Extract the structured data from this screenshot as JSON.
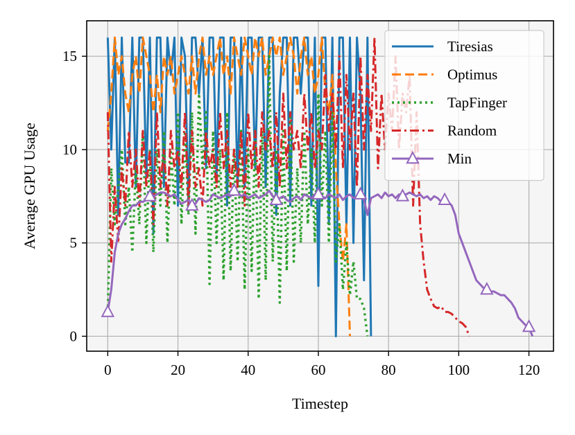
{
  "chart_data": {
    "type": "line",
    "title": "",
    "xlabel": "Timestep",
    "ylabel": "Average GPU Usage",
    "xlim": [
      -6,
      127
    ],
    "ylim": [
      -0.8,
      16.9
    ],
    "xticks": [
      0,
      20,
      40,
      60,
      80,
      100,
      120
    ],
    "yticks": [
      0,
      5,
      10,
      15
    ],
    "grid": true,
    "legend_position": "top-right",
    "series": [
      {
        "name": "Tiresias",
        "color": "#1f77b4",
        "dash": "solid",
        "marker": "none",
        "x": [
          0,
          1,
          2,
          3,
          4,
          5,
          6,
          7,
          8,
          9,
          10,
          11,
          12,
          13,
          14,
          15,
          16,
          17,
          18,
          19,
          20,
          21,
          22,
          23,
          24,
          25,
          26,
          27,
          28,
          29,
          30,
          31,
          32,
          33,
          34,
          35,
          36,
          37,
          38,
          39,
          40,
          41,
          42,
          43,
          44,
          45,
          46,
          47,
          48,
          49,
          50,
          51,
          52,
          53,
          54,
          55,
          56,
          57,
          58,
          59,
          60,
          61,
          62,
          63,
          64,
          65,
          66,
          67,
          68,
          69,
          70,
          71,
          72,
          73,
          74,
          75
        ],
        "y": [
          16,
          10,
          16,
          6.5,
          16,
          9.3,
          9.3,
          16,
          8,
          16,
          16,
          8.5,
          16,
          5.5,
          16,
          16,
          8,
          16,
          14,
          16,
          7,
          16,
          15,
          7,
          16,
          16,
          13,
          16,
          9,
          16,
          16,
          8.5,
          16,
          16,
          7,
          16,
          16,
          8,
          16,
          8,
          16,
          16,
          9,
          16,
          16,
          8,
          16,
          16,
          6.5,
          13,
          16,
          16,
          7,
          16,
          16,
          13,
          16,
          16,
          7,
          16,
          2.7,
          16,
          16,
          6,
          16,
          0,
          16,
          16,
          6,
          16,
          5,
          16,
          13,
          3,
          16,
          0
        ]
      },
      {
        "name": "Optimus",
        "color": "#ff7f0e",
        "dash": "dashed",
        "marker": "none",
        "x": [
          0,
          1,
          2,
          3,
          4,
          5,
          6,
          7,
          8,
          9,
          10,
          11,
          12,
          13,
          14,
          15,
          16,
          17,
          18,
          19,
          20,
          21,
          22,
          23,
          24,
          25,
          26,
          27,
          28,
          29,
          30,
          31,
          32,
          33,
          34,
          35,
          36,
          37,
          38,
          39,
          40,
          41,
          42,
          43,
          44,
          45,
          46,
          47,
          48,
          49,
          50,
          51,
          52,
          53,
          54,
          55,
          56,
          57,
          58,
          59,
          60,
          61,
          62,
          63,
          64,
          65,
          66,
          67,
          68,
          69
        ],
        "y": [
          11,
          13,
          16,
          14,
          15,
          13,
          12,
          14,
          15,
          13,
          16,
          15,
          14,
          12,
          14,
          12,
          15,
          14,
          15,
          13,
          14,
          15,
          14,
          13,
          15,
          13,
          15,
          16,
          14,
          15,
          14,
          15,
          16,
          14,
          15,
          13,
          16,
          15,
          14,
          16,
          15,
          14,
          16,
          15,
          16,
          14,
          15,
          16,
          15,
          16,
          14,
          15,
          16,
          15,
          13,
          15,
          16,
          14,
          15,
          13,
          14,
          16,
          13,
          12,
          14,
          9,
          6,
          4,
          6,
          0
        ]
      },
      {
        "name": "TapFinger",
        "color": "#2ca02c",
        "dash": "dotted",
        "marker": "none",
        "x": [
          0,
          1,
          2,
          3,
          4,
          5,
          6,
          7,
          8,
          9,
          10,
          11,
          12,
          13,
          14,
          15,
          16,
          17,
          18,
          19,
          20,
          21,
          22,
          23,
          24,
          25,
          26,
          27,
          28,
          29,
          30,
          31,
          32,
          33,
          34,
          35,
          36,
          37,
          38,
          39,
          40,
          41,
          42,
          43,
          44,
          45,
          46,
          47,
          48,
          49,
          50,
          51,
          52,
          53,
          54,
          55,
          56,
          57,
          58,
          59,
          60,
          61,
          62,
          63,
          64,
          65,
          66,
          67,
          68,
          69,
          70,
          71,
          72,
          73,
          74
        ],
        "y": [
          1.3,
          9,
          6,
          8,
          10,
          6,
          8,
          4.5,
          9,
          6,
          11,
          5,
          10,
          4.5,
          10,
          7,
          11,
          5,
          10,
          7,
          12,
          6,
          11,
          6.5,
          12,
          5.5,
          13,
          9,
          12,
          2.8,
          11,
          5,
          10,
          3,
          12,
          3.5,
          10,
          4,
          11,
          2.5,
          10,
          3.5,
          11,
          2,
          11,
          3,
          15,
          4,
          10,
          1.8,
          11,
          3.5,
          12,
          4,
          9,
          5,
          11,
          6,
          10,
          5,
          13,
          7,
          11,
          5,
          12,
          4,
          6,
          2.5,
          5,
          2.2,
          4,
          2,
          2,
          1.5,
          0
        ]
      },
      {
        "name": "Random",
        "color": "#d62728",
        "dash": "dashdot",
        "marker": "none",
        "x": [
          0,
          1,
          2,
          3,
          4,
          5,
          6,
          7,
          8,
          9,
          10,
          11,
          12,
          13,
          14,
          15,
          16,
          17,
          18,
          19,
          20,
          21,
          22,
          23,
          24,
          25,
          26,
          27,
          28,
          29,
          30,
          31,
          32,
          33,
          34,
          35,
          36,
          37,
          38,
          39,
          40,
          41,
          42,
          43,
          44,
          45,
          46,
          47,
          48,
          49,
          50,
          51,
          52,
          53,
          54,
          55,
          56,
          57,
          58,
          59,
          60,
          61,
          62,
          63,
          64,
          65,
          66,
          67,
          68,
          69,
          70,
          71,
          72,
          73,
          74,
          75,
          76,
          77,
          78,
          79,
          80,
          81,
          82,
          83,
          84,
          85,
          86,
          87,
          88,
          89,
          90,
          91,
          92,
          93,
          94,
          95,
          96,
          97,
          98,
          99,
          100,
          101,
          102,
          103
        ],
        "y": [
          12,
          4,
          8,
          5,
          9,
          7,
          11,
          8,
          10,
          7,
          11,
          8,
          10,
          6,
          12,
          8,
          10,
          7,
          11,
          9,
          10,
          8,
          12,
          7,
          11,
          8,
          9,
          7,
          11,
          9,
          10,
          8,
          12,
          9,
          11,
          8,
          10,
          8,
          11,
          7,
          12,
          9,
          11,
          8,
          12,
          10,
          11,
          9,
          12,
          8,
          13,
          9,
          12,
          10,
          11,
          9,
          13,
          10,
          12,
          9,
          11,
          10,
          14,
          11,
          13,
          10,
          15,
          9,
          14,
          10,
          13,
          8,
          15,
          10,
          14,
          11,
          16,
          9,
          13,
          10,
          13,
          11,
          15,
          10,
          13,
          12,
          14,
          7,
          12,
          6,
          4,
          2.5,
          2,
          1.6,
          1.5,
          1.6,
          1.3,
          1.3,
          1.2,
          1,
          0.8,
          0.7,
          0.5,
          0
        ]
      },
      {
        "name": "Min",
        "color": "#9467bd",
        "dash": "solid",
        "marker": "triangle",
        "marker_every": 12,
        "x": [
          0,
          1,
          2,
          3,
          4,
          5,
          6,
          7,
          8,
          9,
          10,
          11,
          12,
          13,
          14,
          15,
          16,
          17,
          18,
          19,
          20,
          21,
          22,
          23,
          24,
          25,
          26,
          27,
          28,
          29,
          30,
          31,
          32,
          33,
          34,
          35,
          36,
          37,
          38,
          39,
          40,
          41,
          42,
          43,
          44,
          45,
          46,
          47,
          48,
          49,
          50,
          51,
          52,
          53,
          54,
          55,
          56,
          57,
          58,
          59,
          60,
          61,
          62,
          63,
          64,
          65,
          66,
          67,
          68,
          69,
          70,
          71,
          72,
          73,
          74,
          75,
          76,
          77,
          78,
          79,
          80,
          81,
          82,
          83,
          84,
          85,
          86,
          87,
          88,
          89,
          90,
          91,
          92,
          93,
          94,
          95,
          96,
          97,
          98,
          99,
          100,
          101,
          102,
          103,
          104,
          105,
          106,
          107,
          108,
          109,
          110,
          111,
          112,
          113,
          114,
          115,
          116,
          117,
          118,
          119,
          120,
          121
        ],
        "y": [
          1.3,
          2.5,
          4.5,
          5.5,
          6,
          6.3,
          6.7,
          7,
          7,
          7.2,
          7.2,
          7.3,
          7.5,
          7.5,
          7.6,
          7.7,
          7.7,
          7.6,
          7.5,
          7.6,
          7.3,
          7.1,
          7.2,
          7.3,
          7,
          7.1,
          7.4,
          7.3,
          7.2,
          7.3,
          7.6,
          7.5,
          7.4,
          7.5,
          7.6,
          7.5,
          7.8,
          7.7,
          7.5,
          7.6,
          7.4,
          7.5,
          7.6,
          7.4,
          7.5,
          7.6,
          7.8,
          7.5,
          7.3,
          7.4,
          7.5,
          7.3,
          7.2,
          7.4,
          7.5,
          7.3,
          7.6,
          7.5,
          7.4,
          7.6,
          7.6,
          7.5,
          7.4,
          7.6,
          7.5,
          7.4,
          7.6,
          7.3,
          7.5,
          7.6,
          7.4,
          7.5,
          7.6,
          7.3,
          6.5,
          7.4,
          7.5,
          7.6,
          7.4,
          7.7,
          7.5,
          7.6,
          7.4,
          7.6,
          7.5,
          7.6,
          7.7,
          7.6,
          7.5,
          7.6,
          7.4,
          7.5,
          7.3,
          7.5,
          7.4,
          7.2,
          7.3,
          7.2,
          7,
          6.5,
          5.5,
          5,
          4.5,
          4,
          3.5,
          3,
          2.8,
          2.6,
          2.5,
          2.4,
          2.4,
          2.3,
          2.2,
          2.2,
          2,
          1.8,
          1.5,
          1,
          0.8,
          0.6,
          0.5,
          0
        ]
      }
    ]
  }
}
